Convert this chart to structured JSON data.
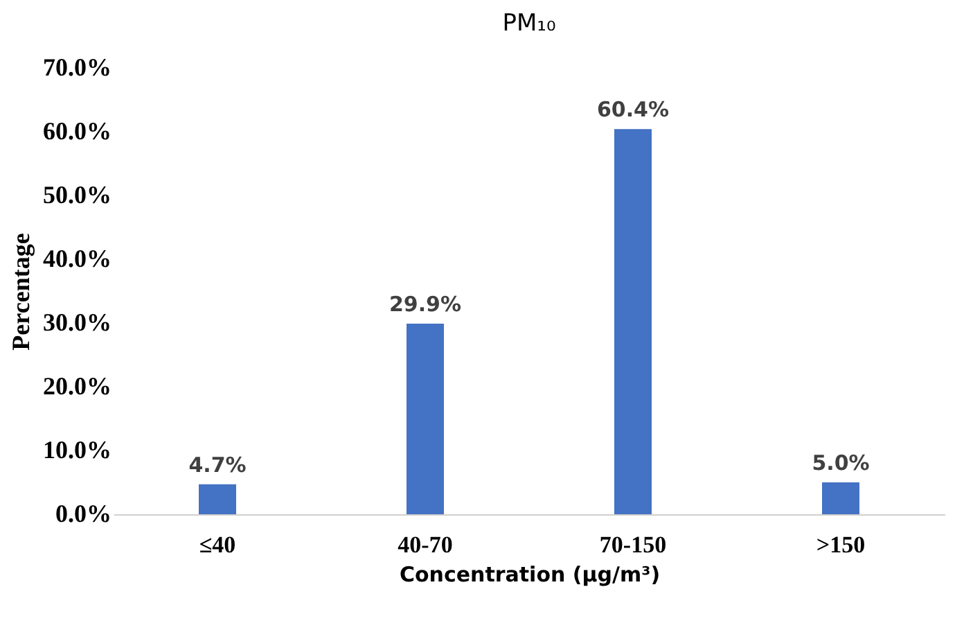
{
  "chart_data": {
    "type": "bar",
    "title": "PM₁₀",
    "xlabel": "Concentration (μg/m³)",
    "ylabel": "Percentage",
    "categories": [
      "≤40",
      "40-70",
      "70-150",
      ">150"
    ],
    "values": [
      4.7,
      29.9,
      60.4,
      5.0
    ],
    "value_labels": [
      "4.7%",
      "29.9%",
      "60.4%",
      "5.0%"
    ],
    "color": "#4472c4",
    "ylim": [
      0,
      70
    ],
    "yticks": [
      {
        "value": 0,
        "label": "0.0%"
      },
      {
        "value": 10,
        "label": "10.0%"
      },
      {
        "value": 20,
        "label": "20.0%"
      },
      {
        "value": 30,
        "label": "30.0%"
      },
      {
        "value": 40,
        "label": "40.0%"
      },
      {
        "value": 50,
        "label": "50.0%"
      },
      {
        "value": 60,
        "label": "60.0%"
      },
      {
        "value": 70,
        "label": "70.0%"
      }
    ]
  }
}
